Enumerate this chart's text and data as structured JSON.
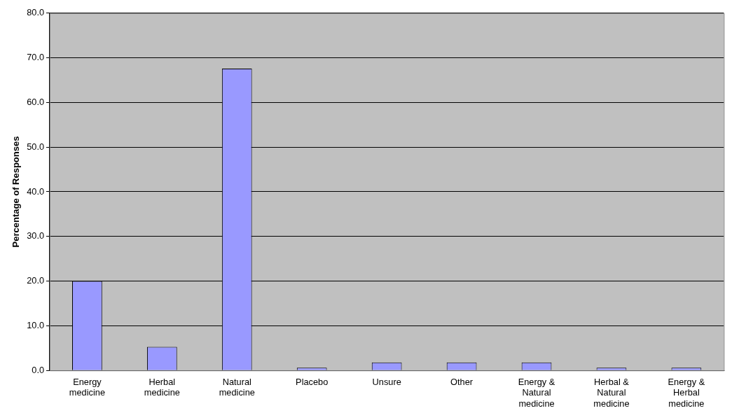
{
  "chart_data": {
    "type": "bar",
    "ylabel": "Percentage of Responses",
    "categories": [
      "Energy medicine",
      "Herbal medicine",
      "Natural medicine",
      "Placebo",
      "Unsure",
      "Other",
      "Energy & Natural medicine",
      "Herbal & Natural medicine",
      "Energy & Herbal medicine"
    ],
    "values": [
      20.0,
      5.3,
      67.6,
      0.6,
      1.8,
      1.8,
      1.8,
      0.6,
      0.6
    ],
    "color": "#9999ff",
    "ylim": [
      0,
      80
    ],
    "yticks": [
      {
        "value": 0,
        "label": "0.0"
      },
      {
        "value": 10,
        "label": "10.0"
      },
      {
        "value": 20,
        "label": "20.0"
      },
      {
        "value": 30,
        "label": "30.0"
      },
      {
        "value": 40,
        "label": "40.0"
      },
      {
        "value": 50,
        "label": "50.0"
      },
      {
        "value": 60,
        "label": "60.0"
      },
      {
        "value": 70,
        "label": "70.0"
      },
      {
        "value": 80,
        "label": "80.0"
      }
    ],
    "grid": "y",
    "legend": false
  }
}
